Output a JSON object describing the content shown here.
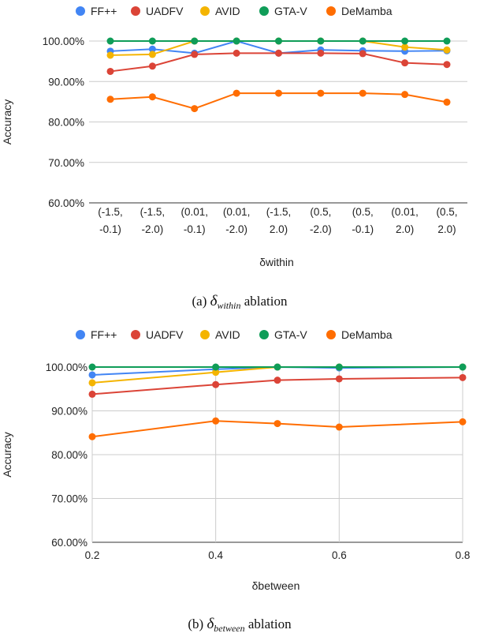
{
  "colors": {
    "FF++": "#4285F4",
    "UADFV": "#DB4437",
    "AVID": "#F4B400",
    "GTA-V": "#0F9D58",
    "DeMamba": "#FF6D01",
    "grid": "#CCCCCC",
    "axis": "#333333"
  },
  "chart_data": [
    {
      "type": "line",
      "categories_lines": [
        [
          "(-1.5,",
          "-0.1)"
        ],
        [
          "(-1.5,",
          "-2.0)"
        ],
        [
          "(0.01,",
          "-0.1)"
        ],
        [
          "(0.01,",
          "-2.0)"
        ],
        [
          "(-1.5,",
          "2.0)"
        ],
        [
          "(0.5,",
          "-2.0)"
        ],
        [
          "(0.5,",
          "-0.1)"
        ],
        [
          "(0.01,",
          "2.0)"
        ],
        [
          "(0.5,",
          "2.0)"
        ]
      ],
      "series": [
        {
          "name": "FF++",
          "values": [
            97.5,
            98.0,
            97.0,
            100.0,
            97.0,
            97.8,
            97.6,
            97.5,
            97.6
          ]
        },
        {
          "name": "UADFV",
          "values": [
            92.5,
            93.8,
            96.7,
            97.0,
            97.0,
            97.0,
            96.9,
            94.6,
            94.2
          ]
        },
        {
          "name": "AVID",
          "values": [
            96.5,
            96.7,
            100.0,
            100.0,
            100.0,
            100.0,
            100.0,
            98.5,
            97.8
          ]
        },
        {
          "name": "GTA-V",
          "values": [
            100.0,
            100.0,
            100.0,
            100.0,
            100.0,
            100.0,
            100.0,
            100.0,
            100.0
          ]
        },
        {
          "name": "DeMamba",
          "values": [
            85.6,
            86.2,
            83.3,
            87.1,
            87.1,
            87.1,
            87.1,
            86.8,
            84.9
          ]
        }
      ],
      "yticks": [
        "60.00%",
        "70.00%",
        "80.00%",
        "90.00%",
        "100.00%"
      ],
      "ylim": [
        60,
        100
      ],
      "ylabel": "Accuracy",
      "xlabel": "δwithin",
      "legend_position": "top-left",
      "caption_prefix": "(a) ",
      "caption_delta": "δ",
      "caption_sub": "within",
      "caption_suffix": " ablation"
    },
    {
      "type": "line",
      "x": [
        0.2,
        0.4,
        0.5,
        0.6,
        0.8
      ],
      "xticks": [
        "0.2",
        "0.4",
        "0.6",
        "0.8"
      ],
      "xtick_values": [
        0.2,
        0.4,
        0.6,
        0.8
      ],
      "xlim": [
        0.2,
        0.8
      ],
      "series": [
        {
          "name": "FF++",
          "values": [
            98.2,
            99.5,
            100.0,
            99.8,
            100.0
          ]
        },
        {
          "name": "UADFV",
          "values": [
            93.8,
            96.0,
            97.0,
            97.3,
            97.6
          ]
        },
        {
          "name": "AVID",
          "values": [
            96.4,
            98.8,
            100.0,
            100.0,
            100.0
          ]
        },
        {
          "name": "GTA-V",
          "values": [
            100.0,
            100.0,
            100.0,
            100.0,
            100.0
          ]
        },
        {
          "name": "DeMamba",
          "values": [
            84.1,
            87.7,
            87.1,
            86.3,
            87.5
          ]
        }
      ],
      "yticks": [
        "60.00%",
        "70.00%",
        "80.00%",
        "90.00%",
        "100.00%"
      ],
      "ylim": [
        60,
        100
      ],
      "ylabel": "Accuracy",
      "xlabel": "δbetween",
      "legend_position": "top-left",
      "caption_prefix": "(b) ",
      "caption_delta": "δ",
      "caption_sub": "between",
      "caption_suffix": " ablation"
    }
  ]
}
